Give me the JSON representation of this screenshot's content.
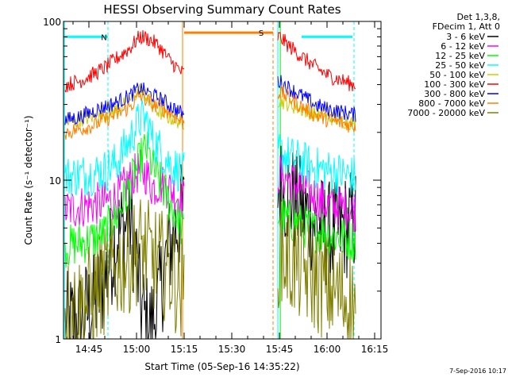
{
  "chart_data": {
    "type": "line",
    "title": "HESSI Observing Summary Count Rates",
    "xlabel": "Start Time (05-Sep-16 14:35:22)",
    "ylabel": "Count Rate (s⁻¹ detector⁻¹)",
    "x_ticks": [
      "14:45",
      "15:00",
      "15:15",
      "15:30",
      "15:45",
      "16:00",
      "16:15"
    ],
    "x_tick_minutes": [
      45,
      60,
      75,
      90,
      105,
      120,
      135
    ],
    "xlim_minutes": [
      37,
      137
    ],
    "x_origin": "14:00",
    "y_ticks": [
      "1",
      "10",
      "100"
    ],
    "y_tick_values": [
      1,
      10,
      100
    ],
    "ylim": [
      1,
      100
    ],
    "yscale": "log",
    "grid": false,
    "legend_header": [
      "Det 1,3,8,",
      "FDecim 1, Att 0"
    ],
    "legend_position": "right",
    "timestamp": "7-Sep-2016 10:17",
    "flags": [
      {
        "label": "N",
        "color": "#00ffff",
        "level": 80,
        "segments": [
          [
            37,
            51
          ],
          [
            112,
            128
          ]
        ]
      },
      {
        "label": "S",
        "color": "#ff7f00",
        "level": 85,
        "segments": [
          [
            75,
            103
          ]
        ]
      }
    ],
    "vlines": [
      {
        "minute": 37.3,
        "color": "#00ffff",
        "style": "solid"
      },
      {
        "minute": 51,
        "color": "#00ffff",
        "style": "dashed"
      },
      {
        "minute": 74.5,
        "color": "#ff7f00",
        "style": "solid"
      },
      {
        "minute": 103,
        "color": "#ff7f00",
        "style": "dashed"
      },
      {
        "minute": 104.5,
        "color": "#00ffff",
        "style": "solid"
      },
      {
        "minute": 105.3,
        "color": "#00ff00",
        "style": "solid"
      },
      {
        "minute": 128.5,
        "color": "#00ffff",
        "style": "dashed"
      }
    ],
    "gaps": [
      [
        75,
        104.3
      ]
    ],
    "series": [
      {
        "name": "3 - 6 keV",
        "color": "#000000",
        "x": [
          38,
          42,
          46,
          50,
          54,
          58,
          61,
          63,
          65,
          67,
          70,
          74.5,
          105,
          108,
          112,
          116,
          120,
          124,
          128
        ],
        "y": [
          1.2,
          1.3,
          1.6,
          2.3,
          4.5,
          5.5,
          1.8,
          1.2,
          1.2,
          1.7,
          3.5,
          6.2,
          9,
          8,
          6.5,
          5.5,
          4.5,
          4.8,
          5.5
        ]
      },
      {
        "name": "6 - 12 keV",
        "color": "#ff00ff",
        "x": [
          38,
          42,
          46,
          50,
          54,
          58,
          61,
          63,
          65,
          67,
          70,
          74.5,
          105,
          108,
          112,
          116,
          120,
          124,
          128
        ],
        "y": [
          6.5,
          6.8,
          7,
          7.2,
          7.8,
          10,
          11.5,
          11,
          9,
          9.5,
          9,
          7.5,
          11,
          10,
          9,
          8,
          7,
          6.8,
          6.5
        ]
      },
      {
        "name": "12 - 25 keV",
        "color": "#00ff00",
        "x": [
          38,
          42,
          46,
          50,
          54,
          58,
          61,
          63,
          65,
          67,
          70,
          74.5,
          105,
          108,
          112,
          116,
          120,
          124,
          128
        ],
        "y": [
          3.8,
          4,
          4.2,
          4.6,
          6,
          9,
          13,
          16,
          12,
          10,
          7.5,
          4.8,
          6,
          5.6,
          5.2,
          4.8,
          4.6,
          4.4,
          4.2
        ]
      },
      {
        "name": "25 - 50 keV",
        "color": "#00ffff",
        "x": [
          38,
          42,
          46,
          50,
          54,
          58,
          61,
          63,
          65,
          67,
          70,
          74.5,
          105,
          108,
          112,
          116,
          120,
          124,
          128
        ],
        "y": [
          10.5,
          10.8,
          11,
          11.5,
          13,
          18,
          24,
          24,
          18,
          16,
          13,
          11,
          15,
          14,
          13,
          12,
          11.5,
          11,
          10.5
        ]
      },
      {
        "name": "50 - 100 keV",
        "color": "#cccc00",
        "x": [
          38,
          42,
          46,
          50,
          54,
          58,
          61,
          63,
          65,
          67,
          70,
          74.5,
          105,
          108,
          112,
          116,
          120,
          124,
          128
        ],
        "y": [
          23,
          24,
          25,
          26,
          28,
          32,
          37,
          34,
          29,
          27,
          25,
          23,
          32,
          30,
          28,
          26,
          25,
          24,
          23
        ]
      },
      {
        "name": "100 - 300 keV",
        "color": "#ff0000",
        "x": [
          38,
          42,
          46,
          50,
          54,
          58,
          61,
          63,
          65,
          67,
          70,
          74.5,
          105,
          108,
          112,
          116,
          120,
          124,
          128
        ],
        "y": [
          40,
          42,
          46,
          51,
          59,
          68,
          80,
          79,
          75,
          70,
          58,
          47,
          80,
          70,
          60,
          52,
          46,
          43,
          40
        ]
      },
      {
        "name": "300 - 800 keV",
        "color": "#0000ff",
        "x": [
          38,
          42,
          46,
          50,
          54,
          58,
          61,
          63,
          65,
          67,
          70,
          74.5,
          105,
          108,
          112,
          116,
          120,
          124,
          128
        ],
        "y": [
          24,
          25,
          27,
          29,
          31,
          34,
          38,
          36,
          34,
          33,
          30,
          26,
          42,
          38,
          34,
          30,
          28,
          27,
          26
        ]
      },
      {
        "name": "800 - 7000 keV",
        "color": "#ff7f00",
        "x": [
          38,
          42,
          46,
          50,
          54,
          58,
          61,
          63,
          65,
          67,
          70,
          74.5,
          105,
          108,
          112,
          116,
          120,
          124,
          128
        ],
        "y": [
          20,
          21,
          22,
          24,
          26,
          29,
          34,
          32,
          30,
          29,
          27,
          23,
          36,
          33,
          29,
          26,
          24,
          23,
          22
        ]
      },
      {
        "name": "7000 - 20000 keV",
        "color": "#808000",
        "x": [
          38,
          42,
          46,
          50,
          54,
          58,
          61,
          63,
          65,
          67,
          70,
          74.5,
          105,
          108,
          112,
          116,
          120,
          124,
          128
        ],
        "y": [
          1.5,
          1.6,
          1.8,
          2.3,
          2.8,
          3.2,
          3.8,
          3.5,
          3.2,
          3,
          2.8,
          2,
          3.5,
          3.1,
          2.7,
          2.4,
          2.1,
          1.9,
          1.7
        ]
      }
    ]
  }
}
